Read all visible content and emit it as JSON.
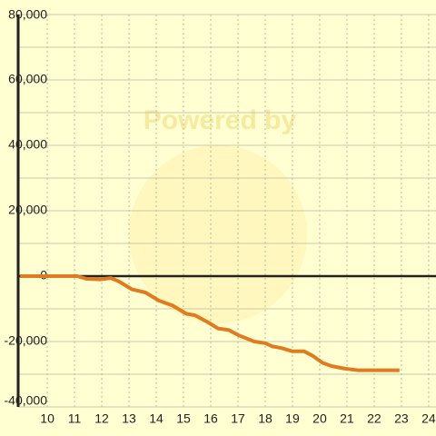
{
  "chart_data": {
    "type": "line",
    "watermark": "Powered by",
    "x": [
      9,
      11.1,
      11.43,
      11.93,
      12.33,
      12.6,
      13.1,
      13.6,
      14.1,
      14.6,
      15.1,
      15.43,
      15.87,
      16.27,
      16.67,
      17.0,
      17.6,
      18.0,
      18.27,
      18.6,
      19.0,
      19.43,
      19.77,
      20.1,
      20.43,
      20.93,
      21.43,
      22.93
    ],
    "series": [
      {
        "color": "#e07b20",
        "values": [
          0,
          0,
          -800,
          -1000,
          -600,
          -1500,
          -4000,
          -5000,
          -7500,
          -9000,
          -11500,
          -12000,
          -14000,
          -16000,
          -16500,
          -18000,
          -20000,
          -20500,
          -21500,
          -22000,
          -23000,
          -23000,
          -24500,
          -26500,
          -27500,
          -28300,
          -28800,
          -28800
        ]
      }
    ],
    "xlim": [
      8.93,
      24.27
    ],
    "xticks": [
      10,
      11,
      12,
      13,
      14,
      15,
      16,
      17,
      18,
      19,
      20,
      21,
      22,
      23,
      24
    ],
    "ylim": [
      -40000,
      80000
    ],
    "yticks": [
      {
        "value": -40000,
        "label": "-40,000"
      },
      {
        "value": -20000,
        "label": "-20,000"
      },
      0,
      {
        "value": 20000,
        "label": "20,000"
      },
      {
        "value": 40000,
        "label": "40,000"
      },
      {
        "value": 60000,
        "label": "60,000"
      },
      {
        "value": 80000,
        "label": "80,000"
      }
    ],
    "yminorticks": [
      -30000,
      -10000,
      10000,
      30000,
      50000,
      70000
    ],
    "grid": true
  }
}
